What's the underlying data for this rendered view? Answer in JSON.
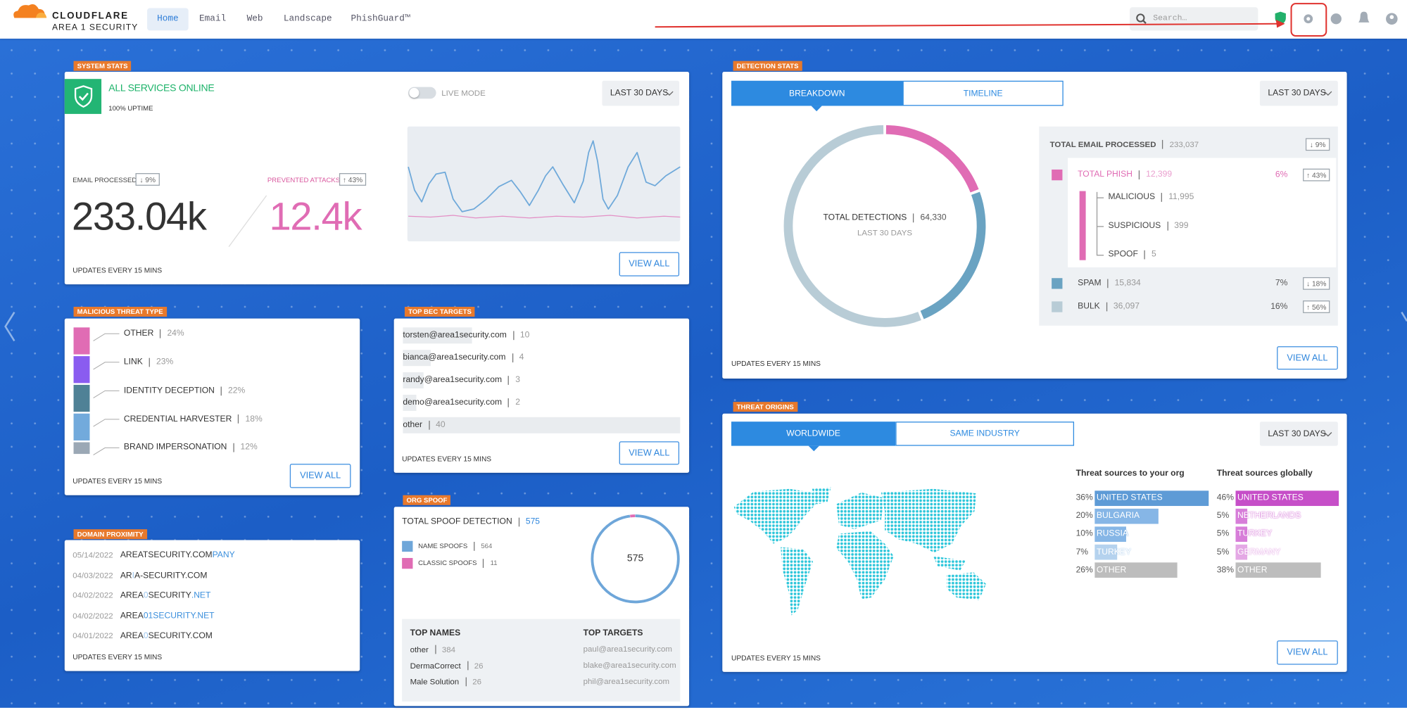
{
  "nav": {
    "brand": "CLOUDFLARE",
    "product": "AREA 1 SECURITY",
    "tabs": [
      "Home",
      "Email",
      "Web",
      "Landscape",
      "PhishGuard™"
    ],
    "active_tab": 0,
    "search": "Search…"
  },
  "system_stats": {
    "tag": "SYSTEM STATS",
    "status": "ALL SERVICES ONLINE",
    "uptime": "100% UPTIME",
    "live_mode": "LIVE MODE",
    "range": "LAST 30 DAYS",
    "email_processed": {
      "label": "EMAIL PROCESSED",
      "change": "↓ 9%",
      "value": "233.04k"
    },
    "prevented_attacks": {
      "label": "PREVENTED ATTACKS",
      "change": "↑ 43%",
      "value": "12.4k"
    },
    "footer": "UPDATES EVERY 15 MINS",
    "button": "VIEW ALL"
  },
  "detection_stats": {
    "tag": "DETECTION STATS",
    "tabs": [
      "BREAKDOWN",
      "TIMELINE"
    ],
    "range": "LAST 30 DAYS",
    "total_label": "TOTAL DETECTIONS",
    "total": "64,330",
    "period": "LAST 30 DAYS",
    "processed_label": "TOTAL EMAIL PROCESSED",
    "processed": "233,037",
    "processed_change": "↓ 9%",
    "items": [
      {
        "name": "TOTAL PHISH",
        "value": 12399,
        "value_label": "12,399",
        "share": "6%",
        "change": "↑ 43%",
        "color": "#e06cb4",
        "subitems": [
          {
            "name": "MALICIOUS",
            "value": "11,995"
          },
          {
            "name": "SUSPICIOUS",
            "value": "399"
          },
          {
            "name": "SPOOF",
            "value": "5"
          }
        ]
      },
      {
        "name": "SPAM",
        "value": 15834,
        "value_label": "15,834",
        "share": "7%",
        "change": "↓ 18%",
        "color": "#6aa3c2"
      },
      {
        "name": "BULK",
        "value": 36097,
        "value_label": "36,097",
        "share": "16%",
        "change": "↑ 56%",
        "color": "#b8ccd6"
      }
    ],
    "footer": "UPDATES EVERY 15 MINS",
    "button": "VIEW ALL"
  },
  "malicious_threat_type": {
    "tag": "MALICIOUS THREAT TYPE",
    "items": [
      {
        "name": "OTHER",
        "share": "24%",
        "color": "#e06cb4"
      },
      {
        "name": "LINK",
        "share": "23%",
        "color": "#8a5cf0"
      },
      {
        "name": "IDENTITY DECEPTION",
        "share": "22%",
        "color": "#4f8196"
      },
      {
        "name": "CREDENTIAL HARVESTER",
        "share": "18%",
        "color": "#72aadc"
      },
      {
        "name": "BRAND IMPERSONATION",
        "share": "12%",
        "color": "#9ba8b5"
      }
    ],
    "footer": "UPDATES EVERY 15 MINS",
    "button": "VIEW ALL"
  },
  "top_bec_targets": {
    "tag": "TOP BEC TARGETS",
    "rows": [
      {
        "email": "torsten@area1security.com",
        "count": 10
      },
      {
        "email": "bianca@area1security.com",
        "count": 4
      },
      {
        "email": "randy@area1security.com",
        "count": 3
      },
      {
        "email": "demo@area1security.com",
        "count": 2
      },
      {
        "email": "other",
        "count": 40
      }
    ],
    "footer": "UPDATES EVERY 15 MINS",
    "button": "VIEW ALL"
  },
  "org_spoof": {
    "tag": "ORG SPOOF",
    "title": "TOTAL SPOOF DETECTION",
    "total": 575,
    "legend": [
      {
        "name": "NAME SPOOFS",
        "value": 564,
        "color": "#6ea6d9"
      },
      {
        "name": "CLASSIC SPOOFS",
        "value": 11,
        "color": "#e06cb4"
      }
    ],
    "top_names": {
      "title": "TOP NAMES",
      "rows": [
        {
          "name": "other",
          "count": 384
        },
        {
          "name": "DermaCorrect",
          "count": 26
        },
        {
          "name": "Male Solution",
          "count": 26
        }
      ]
    },
    "top_targets": {
      "title": "TOP TARGETS",
      "rows": [
        "paul@area1security.com",
        "blake@area1security.com",
        "phil@area1security.com"
      ]
    }
  },
  "domain_proximity": {
    "tag": "DOMAIN PROXIMITY",
    "rows": [
      {
        "date": "05/14/2022",
        "parts": [
          {
            "text": "AREATSECURITY.COM"
          },
          {
            "text": "PANY",
            "mark": "added"
          }
        ]
      },
      {
        "date": "04/03/2022",
        "parts": [
          {
            "text": "AR"
          },
          {
            "text": "I",
            "mark": "swapped"
          },
          {
            "text": "A-SECURITY.COM"
          }
        ]
      },
      {
        "date": "04/02/2022",
        "parts": [
          {
            "text": "AREA"
          },
          {
            "text": "0",
            "mark": "swapped"
          },
          {
            "text": "SECURITY"
          },
          {
            "text": ".NET",
            "mark": "added"
          }
        ]
      },
      {
        "date": "04/02/2022",
        "parts": [
          {
            "text": "AREA"
          },
          {
            "text": "01SECURITY.NET",
            "mark": "added"
          }
        ]
      },
      {
        "date": "04/01/2022",
        "parts": [
          {
            "text": "AREA"
          },
          {
            "text": "0",
            "mark": "swapped"
          },
          {
            "text": "SECURITY.COM"
          }
        ]
      }
    ],
    "footer": "UPDATES EVERY 15 MINS"
  },
  "threat_origins": {
    "tag": "THREAT ORIGINS",
    "tabs": [
      "WORLDWIDE",
      "SAME INDUSTRY"
    ],
    "range": "LAST 30 DAYS",
    "columns": [
      {
        "title": "Threat sources to your org",
        "rows": [
          {
            "value": 36,
            "label": "36%",
            "country": "UNITED STATES",
            "color": "#5e9bd6"
          },
          {
            "value": 20,
            "label": "20%",
            "country": "BULGARIA",
            "color": "#86b6e6"
          },
          {
            "value": 10,
            "label": "10%",
            "country": "RUSSIA",
            "color": "#86b6e6"
          },
          {
            "value": 7,
            "label": "7%",
            "country": "TURKEY",
            "color": "#b5d2ee"
          },
          {
            "value": 26,
            "label": "26%",
            "country": "OTHER",
            "color": "#bdbdbd"
          }
        ]
      },
      {
        "title": "Threat sources globally",
        "rows": [
          {
            "value": 46,
            "label": "46%",
            "country": "UNITED STATES",
            "color": "#c64fc8"
          },
          {
            "value": 5,
            "label": "5%",
            "country": "NETHERLANDS",
            "color": "#d77ed9"
          },
          {
            "value": 5,
            "label": "5%",
            "country": "TURKEY",
            "color": "#d77ed9"
          },
          {
            "value": 5,
            "label": "5%",
            "country": "GERMANY",
            "color": "#e4a8e5"
          },
          {
            "value": 38,
            "label": "38%",
            "country": "OTHER",
            "color": "#bdbdbd"
          }
        ]
      }
    ],
    "footer": "UPDATES EVERY 15 MINS",
    "button": "VIEW ALL"
  }
}
